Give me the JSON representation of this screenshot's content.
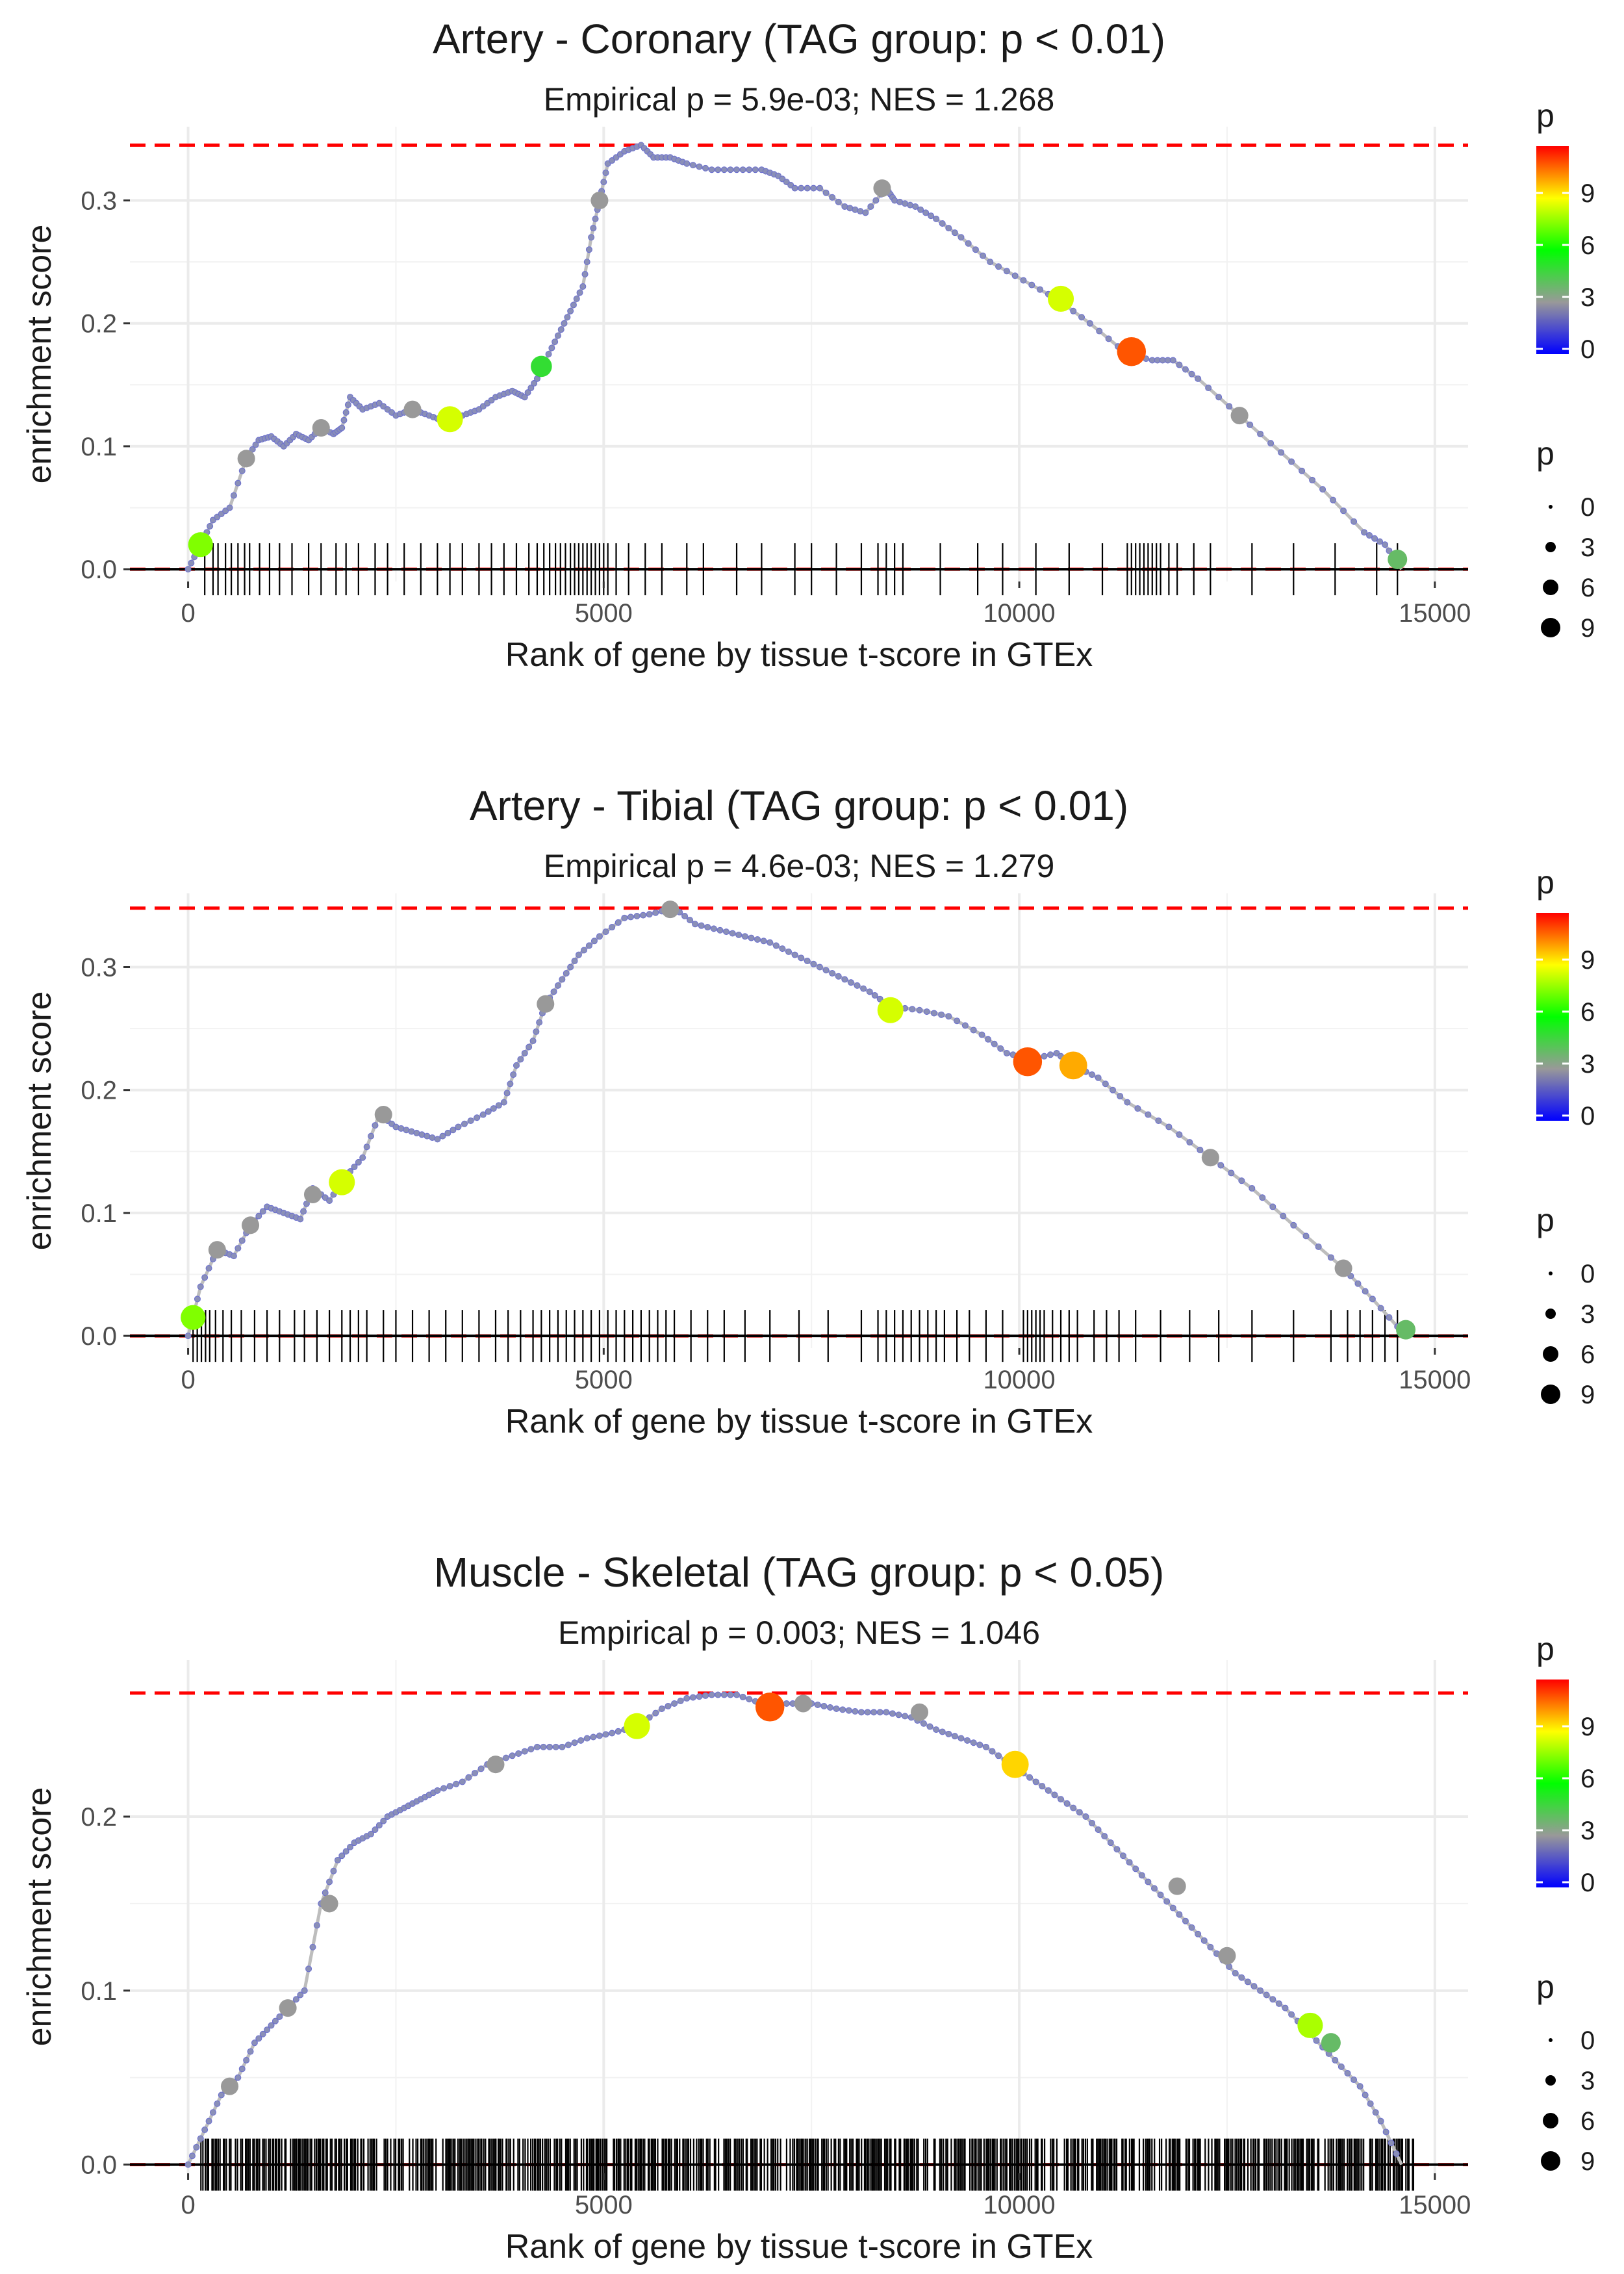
{
  "colors": {
    "max_line": "#ff0000",
    "curve": "#bdbdbd",
    "hit_ticks": "#000000",
    "gradient": [
      "#0000ff",
      "#999999",
      "#00ff00",
      "#ffff00",
      "#ff0000"
    ]
  },
  "legends": {
    "color_title": "p",
    "color_labels": [
      "0",
      "3",
      "6",
      "9"
    ],
    "size_title": "p",
    "size_labels": [
      "0",
      "3",
      "6",
      "9"
    ]
  },
  "chart_data": [
    {
      "type": "line",
      "title": "Artery - Coronary (TAG group: p < 0.01)",
      "subtitle": "Empirical p = 5.9e-03; NES = 1.268",
      "xlabel": "Rank of gene by tissue t-score in GTEx",
      "ylabel": "enrichment score",
      "xlim": [
        -700,
        15400
      ],
      "ylim": [
        -0.01,
        0.36
      ],
      "x_ticks": [
        0,
        5000,
        10000,
        15000
      ],
      "y_ticks": [
        0.0,
        0.1,
        0.2,
        0.3
      ],
      "x_tick_labels": [
        "0",
        "5000",
        "10000",
        "15000"
      ],
      "y_tick_labels": [
        "0.0",
        "0.1",
        "0.2",
        "0.3"
      ],
      "max_es": 0.345,
      "grid": true,
      "curve": [
        [
          0,
          0.0
        ],
        [
          150,
          0.02
        ],
        [
          300,
          0.04
        ],
        [
          500,
          0.05
        ],
        [
          700,
          0.09
        ],
        [
          850,
          0.105
        ],
        [
          1000,
          0.108
        ],
        [
          1150,
          0.1
        ],
        [
          1300,
          0.11
        ],
        [
          1450,
          0.105
        ],
        [
          1600,
          0.115
        ],
        [
          1750,
          0.11
        ],
        [
          1850,
          0.115
        ],
        [
          1950,
          0.14
        ],
        [
          2100,
          0.13
        ],
        [
          2300,
          0.135
        ],
        [
          2500,
          0.125
        ],
        [
          2700,
          0.13
        ],
        [
          2900,
          0.125
        ],
        [
          3100,
          0.12
        ],
        [
          3300,
          0.125
        ],
        [
          3500,
          0.13
        ],
        [
          3700,
          0.14
        ],
        [
          3900,
          0.145
        ],
        [
          4050,
          0.14
        ],
        [
          4200,
          0.155
        ],
        [
          4300,
          0.17
        ],
        [
          4450,
          0.19
        ],
        [
          4600,
          0.21
        ],
        [
          4750,
          0.23
        ],
        [
          4850,
          0.27
        ],
        [
          4950,
          0.3
        ],
        [
          5050,
          0.33
        ],
        [
          5250,
          0.34
        ],
        [
          5450,
          0.345
        ],
        [
          5600,
          0.335
        ],
        [
          5800,
          0.335
        ],
        [
          6000,
          0.33
        ],
        [
          6300,
          0.325
        ],
        [
          6600,
          0.325
        ],
        [
          6900,
          0.325
        ],
        [
          7100,
          0.32
        ],
        [
          7300,
          0.31
        ],
        [
          7600,
          0.31
        ],
        [
          7900,
          0.295
        ],
        [
          8150,
          0.29
        ],
        [
          8400,
          0.31
        ],
        [
          8500,
          0.3
        ],
        [
          8750,
          0.295
        ],
        [
          9000,
          0.285
        ],
        [
          9300,
          0.27
        ],
        [
          9650,
          0.25
        ],
        [
          10050,
          0.235
        ],
        [
          10450,
          0.22
        ],
        [
          10850,
          0.2
        ],
        [
          11300,
          0.175
        ],
        [
          11600,
          0.17
        ],
        [
          11850,
          0.17
        ],
        [
          12150,
          0.155
        ],
        [
          12650,
          0.125
        ],
        [
          13150,
          0.095
        ],
        [
          13650,
          0.065
        ],
        [
          14150,
          0.03
        ],
        [
          14400,
          0.02
        ],
        [
          14600,
          0.0
        ]
      ],
      "hit_ranks": [
        200,
        300,
        360,
        450,
        520,
        600,
        680,
        740,
        860,
        980,
        1100,
        1250,
        1450,
        1600,
        1780,
        1900,
        2050,
        2250,
        2400,
        2600,
        2800,
        3000,
        3150,
        3300,
        3500,
        3650,
        3800,
        3950,
        4100,
        4200,
        4280,
        4350,
        4420,
        4480,
        4540,
        4600,
        4650,
        4700,
        4750,
        4800,
        4850,
        4900,
        4950,
        5000,
        5050,
        5150,
        5300,
        5500,
        5700,
        6000,
        6200,
        6600,
        6900,
        7300,
        7500,
        7800,
        8100,
        8300,
        8400,
        8500,
        8600,
        9050,
        9500,
        9800,
        10200,
        10600,
        11000,
        11300,
        11350,
        11400,
        11450,
        11500,
        11550,
        11600,
        11650,
        11700,
        11800,
        11900,
        12100,
        12300,
        12800,
        13300,
        13800,
        14300,
        14550
      ],
      "highlight_points": [
        {
          "x": 150,
          "y": 0.02,
          "p": 7.5
        },
        {
          "x": 700,
          "y": 0.09,
          "p": 3
        },
        {
          "x": 1600,
          "y": 0.115,
          "p": 3
        },
        {
          "x": 2700,
          "y": 0.13,
          "p": 3
        },
        {
          "x": 3150,
          "y": 0.122,
          "p": 8.5
        },
        {
          "x": 4250,
          "y": 0.165,
          "p": 5
        },
        {
          "x": 4950,
          "y": 0.3,
          "p": 3
        },
        {
          "x": 8350,
          "y": 0.31,
          "p": 3
        },
        {
          "x": 10500,
          "y": 0.22,
          "p": 8.5
        },
        {
          "x": 11350,
          "y": 0.177,
          "p": 11
        },
        {
          "x": 12650,
          "y": 0.125,
          "p": 3
        },
        {
          "x": 14550,
          "y": 0.008,
          "p": 4
        }
      ]
    },
    {
      "type": "line",
      "title": "Artery - Tibial (TAG group: p < 0.01)",
      "subtitle": "Empirical p = 4.6e-03; NES = 1.279",
      "xlabel": "Rank of gene by tissue t-score in GTEx",
      "ylabel": "enrichment score",
      "xlim": [
        -700,
        15400
      ],
      "ylim": [
        -0.01,
        0.36
      ],
      "x_ticks": [
        0,
        5000,
        10000,
        15000
      ],
      "y_ticks": [
        0.0,
        0.1,
        0.2,
        0.3
      ],
      "x_tick_labels": [
        "0",
        "5000",
        "10000",
        "15000"
      ],
      "y_tick_labels": [
        "0.0",
        "0.1",
        "0.2",
        "0.3"
      ],
      "max_es": 0.348,
      "grid": true,
      "curve": [
        [
          0,
          0.0
        ],
        [
          150,
          0.04
        ],
        [
          350,
          0.07
        ],
        [
          550,
          0.065
        ],
        [
          750,
          0.09
        ],
        [
          950,
          0.105
        ],
        [
          1150,
          0.1
        ],
        [
          1350,
          0.095
        ],
        [
          1500,
          0.12
        ],
        [
          1700,
          0.11
        ],
        [
          1900,
          0.13
        ],
        [
          2100,
          0.145
        ],
        [
          2300,
          0.18
        ],
        [
          2500,
          0.17
        ],
        [
          2750,
          0.165
        ],
        [
          3000,
          0.16
        ],
        [
          3250,
          0.17
        ],
        [
          3550,
          0.18
        ],
        [
          3800,
          0.19
        ],
        [
          3950,
          0.22
        ],
        [
          4150,
          0.24
        ],
        [
          4300,
          0.27
        ],
        [
          4500,
          0.29
        ],
        [
          4700,
          0.31
        ],
        [
          4950,
          0.325
        ],
        [
          5250,
          0.34
        ],
        [
          5550,
          0.343
        ],
        [
          5850,
          0.348
        ],
        [
          6100,
          0.335
        ],
        [
          6400,
          0.33
        ],
        [
          6700,
          0.325
        ],
        [
          7000,
          0.32
        ],
        [
          7300,
          0.31
        ],
        [
          7600,
          0.3
        ],
        [
          7900,
          0.29
        ],
        [
          8200,
          0.28
        ],
        [
          8450,
          0.268
        ],
        [
          8800,
          0.265
        ],
        [
          9150,
          0.26
        ],
        [
          9550,
          0.245
        ],
        [
          9850,
          0.23
        ],
        [
          10150,
          0.225
        ],
        [
          10450,
          0.23
        ],
        [
          10650,
          0.22
        ],
        [
          10950,
          0.21
        ],
        [
          11300,
          0.19
        ],
        [
          11800,
          0.17
        ],
        [
          12300,
          0.145
        ],
        [
          12800,
          0.12
        ],
        [
          13300,
          0.09
        ],
        [
          13900,
          0.055
        ],
        [
          14250,
          0.03
        ],
        [
          14650,
          0.0
        ]
      ],
      "hit_ranks": [
        60,
        110,
        160,
        210,
        260,
        330,
        420,
        520,
        640,
        800,
        950,
        1100,
        1280,
        1400,
        1550,
        1700,
        1850,
        1950,
        2050,
        2150,
        2350,
        2500,
        2700,
        2900,
        3100,
        3300,
        3500,
        3700,
        3850,
        4000,
        4150,
        4250,
        4350,
        4450,
        4550,
        4650,
        4750,
        4850,
        4950,
        5050,
        5150,
        5250,
        5350,
        5450,
        5550,
        5650,
        5750,
        5850,
        6050,
        6250,
        6450,
        6700,
        7000,
        7350,
        7700,
        8100,
        8300,
        8400,
        8500,
        8600,
        8700,
        8800,
        8900,
        9000,
        9100,
        9250,
        9400,
        9600,
        9800,
        10050,
        10100,
        10150,
        10200,
        10250,
        10300,
        10400,
        10500,
        10600,
        10700,
        10900,
        11050,
        11200,
        11400,
        11700,
        12050,
        12400,
        12800,
        13300,
        13750,
        13950,
        14100,
        14250,
        14400,
        14550
      ],
      "highlight_points": [
        {
          "x": 60,
          "y": 0.015,
          "p": 7.5
        },
        {
          "x": 350,
          "y": 0.07,
          "p": 3
        },
        {
          "x": 750,
          "y": 0.09,
          "p": 3
        },
        {
          "x": 1500,
          "y": 0.115,
          "p": 3
        },
        {
          "x": 1850,
          "y": 0.125,
          "p": 8.5
        },
        {
          "x": 2350,
          "y": 0.18,
          "p": 3
        },
        {
          "x": 4300,
          "y": 0.27,
          "p": 3
        },
        {
          "x": 5800,
          "y": 0.347,
          "p": 3
        },
        {
          "x": 8450,
          "y": 0.265,
          "p": 8.5
        },
        {
          "x": 10100,
          "y": 0.223,
          "p": 11
        },
        {
          "x": 10650,
          "y": 0.22,
          "p": 10
        },
        {
          "x": 12300,
          "y": 0.145,
          "p": 3
        },
        {
          "x": 13900,
          "y": 0.055,
          "p": 3
        },
        {
          "x": 14650,
          "y": 0.005,
          "p": 4
        }
      ]
    },
    {
      "type": "line",
      "title": "Muscle - Skeletal (TAG group: p < 0.05)",
      "subtitle": "Empirical p = 0.003; NES = 1.046",
      "xlabel": "Rank of gene by tissue t-score in GTEx",
      "ylabel": "enrichment score",
      "xlim": [
        -700,
        15400
      ],
      "ylim": [
        -0.005,
        0.29
      ],
      "x_ticks": [
        0,
        5000,
        10000,
        15000
      ],
      "y_ticks": [
        0.0,
        0.1,
        0.2
      ],
      "x_tick_labels": [
        "0",
        "5000",
        "10000",
        "15000"
      ],
      "y_tick_labels": [
        "0.0",
        "0.1",
        "0.2"
      ],
      "max_es": 0.271,
      "grid": true,
      "curve": [
        [
          0,
          0.0
        ],
        [
          200,
          0.02
        ],
        [
          400,
          0.04
        ],
        [
          600,
          0.05
        ],
        [
          800,
          0.07
        ],
        [
          1000,
          0.08
        ],
        [
          1200,
          0.09
        ],
        [
          1400,
          0.1
        ],
        [
          1600,
          0.15
        ],
        [
          1800,
          0.175
        ],
        [
          2000,
          0.185
        ],
        [
          2200,
          0.19
        ],
        [
          2400,
          0.2
        ],
        [
          2600,
          0.205
        ],
        [
          2800,
          0.21
        ],
        [
          3000,
          0.215
        ],
        [
          3300,
          0.22
        ],
        [
          3600,
          0.23
        ],
        [
          3900,
          0.235
        ],
        [
          4200,
          0.24
        ],
        [
          4500,
          0.24
        ],
        [
          4800,
          0.245
        ],
        [
          5100,
          0.248
        ],
        [
          5400,
          0.252
        ],
        [
          5700,
          0.262
        ],
        [
          6000,
          0.268
        ],
        [
          6300,
          0.27
        ],
        [
          6600,
          0.27
        ],
        [
          6900,
          0.265
        ],
        [
          7200,
          0.265
        ],
        [
          7500,
          0.265
        ],
        [
          7800,
          0.262
        ],
        [
          8100,
          0.26
        ],
        [
          8400,
          0.26
        ],
        [
          8700,
          0.257
        ],
        [
          9000,
          0.25
        ],
        [
          9300,
          0.245
        ],
        [
          9600,
          0.24
        ],
        [
          9900,
          0.23
        ],
        [
          10200,
          0.22
        ],
        [
          10500,
          0.21
        ],
        [
          10800,
          0.2
        ],
        [
          11100,
          0.185
        ],
        [
          11400,
          0.17
        ],
        [
          11700,
          0.155
        ],
        [
          12000,
          0.14
        ],
        [
          12300,
          0.125
        ],
        [
          12600,
          0.11
        ],
        [
          12900,
          0.1
        ],
        [
          13200,
          0.09
        ],
        [
          13500,
          0.075
        ],
        [
          13800,
          0.06
        ],
        [
          14100,
          0.045
        ],
        [
          14350,
          0.025
        ],
        [
          14600,
          0.0
        ]
      ],
      "hit_ranks": [],
      "hit_density_ranges": [
        [
          150,
          14750
        ]
      ],
      "highlight_points": [
        {
          "x": 500,
          "y": 0.045,
          "p": 3
        },
        {
          "x": 1200,
          "y": 0.09,
          "p": 3
        },
        {
          "x": 1700,
          "y": 0.15,
          "p": 3
        },
        {
          "x": 3700,
          "y": 0.23,
          "p": 3
        },
        {
          "x": 5400,
          "y": 0.252,
          "p": 8.5
        },
        {
          "x": 7000,
          "y": 0.263,
          "p": 11
        },
        {
          "x": 7400,
          "y": 0.265,
          "p": 3
        },
        {
          "x": 8800,
          "y": 0.26,
          "p": 3
        },
        {
          "x": 9950,
          "y": 0.23,
          "p": 9.5
        },
        {
          "x": 11900,
          "y": 0.16,
          "p": 3
        },
        {
          "x": 12500,
          "y": 0.12,
          "p": 3
        },
        {
          "x": 13500,
          "y": 0.08,
          "p": 8
        },
        {
          "x": 13750,
          "y": 0.07,
          "p": 4
        }
      ]
    }
  ]
}
